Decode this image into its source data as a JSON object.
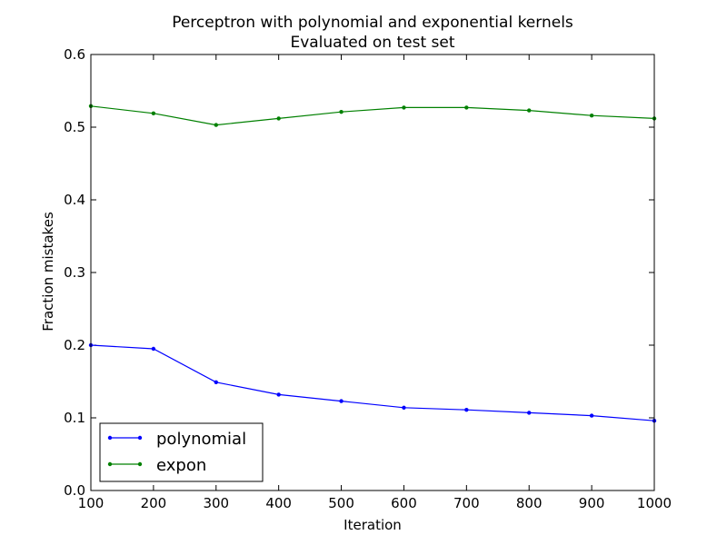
{
  "chart_data": {
    "type": "line",
    "title": "Perceptron with polynomial and exponential kernels",
    "subtitle": "Evaluated on test set",
    "xlabel": "Iteration",
    "ylabel": "Fraction mistakes",
    "xlim": [
      100,
      1000
    ],
    "ylim": [
      0,
      0.6
    ],
    "x_ticks": [
      "100",
      "200",
      "300",
      "400",
      "500",
      "600",
      "700",
      "800",
      "900",
      "1000"
    ],
    "y_ticks": [
      "0.0",
      "0.1",
      "0.2",
      "0.3",
      "0.4",
      "0.5",
      "0.6"
    ],
    "grid": false,
    "legend_position": "lower-left",
    "x": [
      100,
      200,
      300,
      400,
      500,
      600,
      700,
      800,
      900,
      1000
    ],
    "series": [
      {
        "name": "polynomial",
        "color": "#0000ff",
        "values": [
          0.2,
          0.195,
          0.149,
          0.132,
          0.123,
          0.114,
          0.111,
          0.107,
          0.103,
          0.096
        ]
      },
      {
        "name": "expon",
        "color": "#008000",
        "values": [
          0.529,
          0.519,
          0.503,
          0.512,
          0.521,
          0.527,
          0.527,
          0.523,
          0.516,
          0.512
        ]
      }
    ]
  }
}
